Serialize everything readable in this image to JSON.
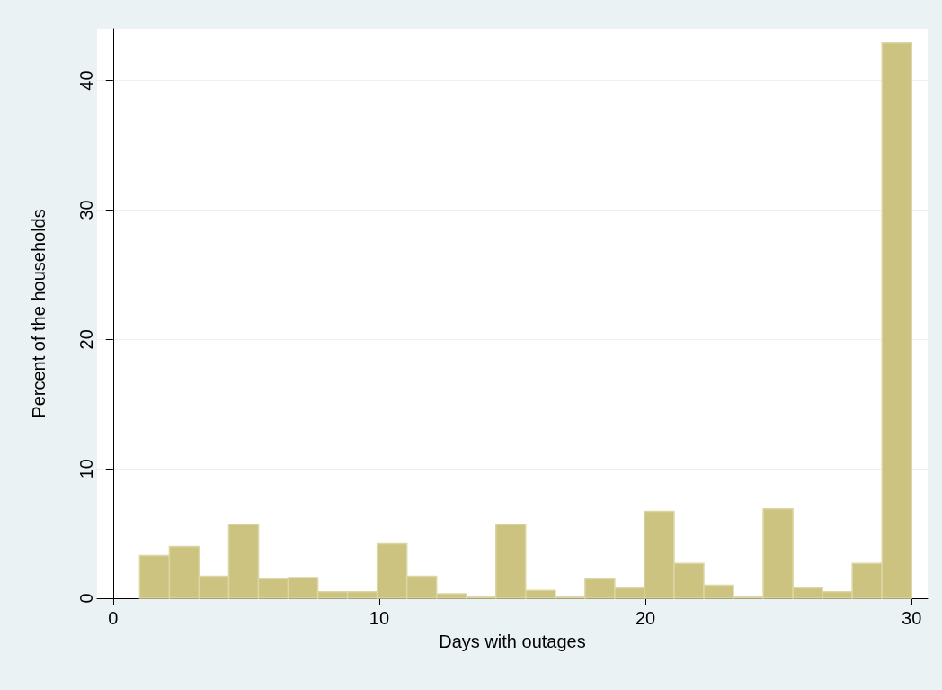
{
  "chart_data": {
    "type": "histogram",
    "xlabel": "Days with outages",
    "ylabel": "Percent of the households",
    "bins": [
      1,
      2.115384615,
      3.230769231,
      4.346153846,
      5.461538462,
      6.576923077,
      7.692307692,
      8.807692308,
      9.923076923,
      11.03846154,
      12.15384615,
      13.26923077,
      14.38461538,
      15.5,
      16.61538462,
      17.73076923,
      18.84615385,
      19.96153846,
      21.07692308,
      22.19230769,
      23.30769231,
      24.42307692,
      25.53846154,
      26.65384615,
      27.76923077,
      28.88461538,
      30
    ],
    "values": [
      3.3,
      4.0,
      1.7,
      5.7,
      1.5,
      1.6,
      0.5,
      0.5,
      4.2,
      1.7,
      0.35,
      0.1,
      5.7,
      0.6,
      0.1,
      1.5,
      0.8,
      6.7,
      2.7,
      1.0,
      0.1,
      6.9,
      0.8,
      0.5,
      2.7,
      42.9
    ],
    "color": "#cbc37f",
    "xlim": [
      -0.6,
      30.6
    ],
    "xticks": [
      0,
      10,
      20,
      30
    ],
    "ylim": [
      0,
      44
    ],
    "yticks": [
      0,
      10,
      20,
      30,
      40
    ],
    "grid": "y"
  }
}
